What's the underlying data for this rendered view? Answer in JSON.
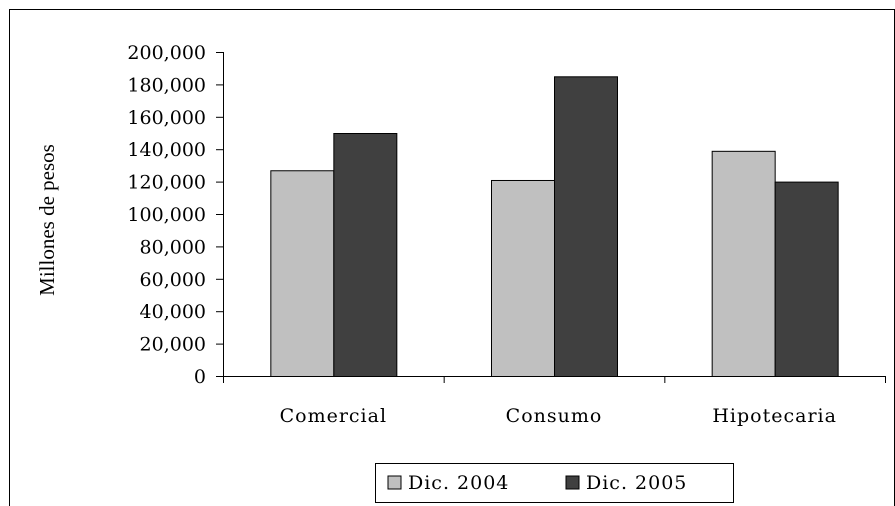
{
  "chart_data": {
    "type": "bar",
    "ylabel": "Millones de pesos",
    "categories": [
      "Comercial",
      "Consumo",
      "Hipotecaria"
    ],
    "series": [
      {
        "name": "Dic. 2004",
        "values": [
          127000,
          121000,
          139000
        ],
        "color": "#c0c0c0"
      },
      {
        "name": "Dic. 2005",
        "values": [
          150000,
          185000,
          120000
        ],
        "color": "#404040"
      }
    ],
    "ylim": [
      0,
      200000
    ],
    "y_ticks": [
      "0",
      "20,000",
      "40,000",
      "60,000",
      "80,000",
      "100,000",
      "120,000",
      "140,000",
      "160,000",
      "180,000",
      "200,000"
    ],
    "y_tick_values": [
      0,
      20000,
      40000,
      60000,
      80000,
      100000,
      120000,
      140000,
      160000,
      180000,
      200000
    ],
    "grid": false,
    "legend_position": "bottom"
  }
}
